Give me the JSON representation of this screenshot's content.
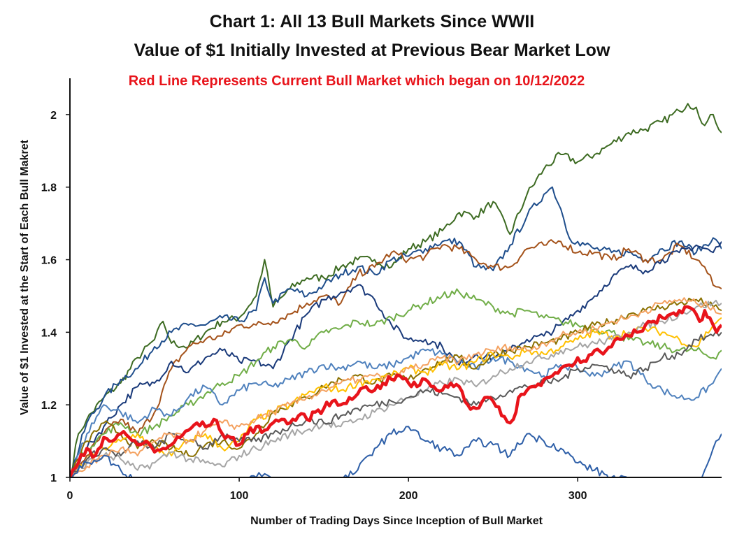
{
  "chart_data": {
    "type": "line",
    "title_line1": "Chart 1: All 13 Bull Markets Since WWII",
    "title_line2": "Value of $1 Initially Invested at Previous Bear Market Low",
    "subtitle": "Red Line Represents Current Bull Market which began on 10/12/2022",
    "subtitle_color": "#e8141b",
    "xlabel": "Number of Trading Days Since Inception of Bull Market",
    "ylabel": "Value of $1 Invested at the Start of Each Bull Makret",
    "xlim": [
      0,
      385
    ],
    "ylim": [
      1,
      2.1
    ],
    "xticks": [
      0,
      100,
      200,
      300
    ],
    "xtick_labels": [
      "0",
      "100",
      "200",
      "300"
    ],
    "yticks": [
      1,
      1.2,
      1.4,
      1.6,
      1.8,
      2
    ],
    "ytick_labels": [
      "1",
      "1.2",
      "1.4",
      "1.6",
      "1.8",
      "2"
    ],
    "grid": false,
    "legend": "none",
    "series": [
      {
        "color": "#3d6b22",
        "x": [
          0,
          5,
          10,
          20,
          30,
          40,
          50,
          55,
          60,
          70,
          80,
          90,
          100,
          110,
          115,
          120,
          130,
          140,
          150,
          160,
          170,
          180,
          190,
          200,
          210,
          220,
          230,
          240,
          250,
          260,
          270,
          280,
          290,
          300,
          310,
          320,
          330,
          340,
          350,
          360,
          365,
          370,
          375,
          380,
          385
        ],
        "values": [
          1,
          1.12,
          1.16,
          1.22,
          1.26,
          1.33,
          1.38,
          1.43,
          1.37,
          1.36,
          1.4,
          1.43,
          1.44,
          1.5,
          1.6,
          1.47,
          1.52,
          1.55,
          1.55,
          1.58,
          1.6,
          1.6,
          1.58,
          1.63,
          1.65,
          1.68,
          1.73,
          1.72,
          1.76,
          1.67,
          1.78,
          1.85,
          1.89,
          1.87,
          1.89,
          1.92,
          1.95,
          1.96,
          1.98,
          2.01,
          2.03,
          2.02,
          1.97,
          2.0,
          1.95
        ]
      },
      {
        "color": "#1f4e8c",
        "x": [
          0,
          10,
          20,
          30,
          40,
          50,
          60,
          70,
          80,
          90,
          100,
          110,
          115,
          120,
          130,
          140,
          150,
          160,
          170,
          180,
          190,
          200,
          210,
          220,
          230,
          240,
          250,
          260,
          270,
          280,
          285,
          290,
          295,
          300,
          310,
          320,
          330,
          340,
          350,
          360,
          370,
          380,
          385
        ],
        "values": [
          1,
          1.15,
          1.22,
          1.27,
          1.3,
          1.36,
          1.4,
          1.42,
          1.42,
          1.44,
          1.43,
          1.46,
          1.55,
          1.48,
          1.52,
          1.5,
          1.53,
          1.56,
          1.58,
          1.56,
          1.6,
          1.61,
          1.63,
          1.65,
          1.65,
          1.58,
          1.57,
          1.64,
          1.72,
          1.78,
          1.8,
          1.74,
          1.66,
          1.65,
          1.63,
          1.62,
          1.62,
          1.6,
          1.63,
          1.65,
          1.62,
          1.66,
          1.63
        ]
      },
      {
        "color": "#a4521a",
        "x": [
          0,
          10,
          20,
          30,
          40,
          50,
          60,
          70,
          80,
          90,
          100,
          110,
          120,
          130,
          140,
          150,
          160,
          170,
          180,
          190,
          200,
          210,
          220,
          230,
          240,
          250,
          260,
          270,
          280,
          290,
          300,
          310,
          320,
          330,
          340,
          350,
          360,
          370,
          375,
          380,
          385
        ],
        "values": [
          1,
          1.06,
          1.12,
          1.16,
          1.12,
          1.18,
          1.3,
          1.36,
          1.38,
          1.39,
          1.42,
          1.42,
          1.43,
          1.45,
          1.48,
          1.5,
          1.48,
          1.56,
          1.58,
          1.62,
          1.6,
          1.61,
          1.64,
          1.63,
          1.6,
          1.58,
          1.58,
          1.63,
          1.64,
          1.65,
          1.62,
          1.62,
          1.6,
          1.63,
          1.6,
          1.6,
          1.64,
          1.6,
          1.58,
          1.53,
          1.52
        ]
      },
      {
        "color": "#1a3a7a",
        "x": [
          0,
          10,
          20,
          30,
          40,
          50,
          60,
          70,
          80,
          90,
          100,
          110,
          120,
          130,
          140,
          150,
          160,
          170,
          180,
          190,
          200,
          210,
          220,
          230,
          240,
          250,
          260,
          270,
          280,
          290,
          300,
          310,
          320,
          330,
          340,
          350,
          360,
          370,
          380,
          385
        ],
        "values": [
          1,
          1.08,
          1.14,
          1.2,
          1.25,
          1.26,
          1.32,
          1.29,
          1.33,
          1.35,
          1.32,
          1.32,
          1.3,
          1.38,
          1.45,
          1.49,
          1.51,
          1.53,
          1.49,
          1.42,
          1.38,
          1.38,
          1.36,
          1.31,
          1.34,
          1.33,
          1.35,
          1.38,
          1.39,
          1.42,
          1.46,
          1.5,
          1.55,
          1.58,
          1.57,
          1.6,
          1.62,
          1.64,
          1.62,
          1.65
        ]
      },
      {
        "color": "#70ad47",
        "x": [
          0,
          10,
          20,
          30,
          40,
          50,
          60,
          70,
          80,
          90,
          100,
          110,
          120,
          130,
          140,
          150,
          160,
          170,
          180,
          190,
          200,
          210,
          220,
          230,
          240,
          250,
          260,
          270,
          280,
          290,
          300,
          310,
          320,
          330,
          340,
          350,
          360,
          370,
          380,
          385
        ],
        "values": [
          1,
          1.08,
          1.12,
          1.15,
          1.12,
          1.14,
          1.17,
          1.2,
          1.23,
          1.26,
          1.28,
          1.32,
          1.36,
          1.38,
          1.36,
          1.4,
          1.41,
          1.43,
          1.42,
          1.44,
          1.46,
          1.48,
          1.5,
          1.51,
          1.49,
          1.47,
          1.45,
          1.46,
          1.44,
          1.43,
          1.42,
          1.41,
          1.4,
          1.38,
          1.37,
          1.36,
          1.35,
          1.35,
          1.33,
          1.35
        ]
      },
      {
        "color": "#4f81bd",
        "x": [
          0,
          10,
          20,
          30,
          40,
          50,
          60,
          70,
          80,
          90,
          100,
          110,
          120,
          130,
          140,
          150,
          160,
          170,
          180,
          190,
          200,
          210,
          220,
          230,
          240,
          250,
          260,
          270,
          280,
          290,
          300,
          310,
          320,
          330,
          340,
          350,
          360,
          370,
          380,
          385
        ],
        "values": [
          1,
          1.12,
          1.2,
          1.18,
          1.15,
          1.19,
          1.17,
          1.22,
          1.25,
          1.2,
          1.24,
          1.26,
          1.25,
          1.27,
          1.29,
          1.31,
          1.3,
          1.32,
          1.3,
          1.31,
          1.33,
          1.35,
          1.34,
          1.32,
          1.3,
          1.33,
          1.32,
          1.3,
          1.28,
          1.31,
          1.3,
          1.28,
          1.3,
          1.32,
          1.27,
          1.24,
          1.22,
          1.22,
          1.26,
          1.3
        ]
      },
      {
        "color": "#8a7000",
        "x": [
          0,
          10,
          20,
          30,
          40,
          50,
          60,
          70,
          80,
          90,
          100,
          110,
          120,
          130,
          140,
          150,
          160,
          170,
          180,
          190,
          200,
          210,
          220,
          230,
          240,
          250,
          260,
          270,
          280,
          290,
          300,
          310,
          320,
          330,
          340,
          350,
          360,
          370,
          380,
          385
        ],
        "values": [
          1,
          1.1,
          1.15,
          1.12,
          1.08,
          1.1,
          1.08,
          1.06,
          1.09,
          1.1,
          1.08,
          1.12,
          1.18,
          1.2,
          1.22,
          1.25,
          1.27,
          1.28,
          1.26,
          1.28,
          1.27,
          1.3,
          1.32,
          1.33,
          1.3,
          1.34,
          1.35,
          1.36,
          1.37,
          1.38,
          1.4,
          1.42,
          1.43,
          1.45,
          1.46,
          1.47,
          1.48,
          1.49,
          1.47,
          1.46
        ]
      },
      {
        "color": "#ffc000",
        "x": [
          0,
          10,
          20,
          30,
          40,
          50,
          60,
          70,
          80,
          90,
          100,
          110,
          120,
          130,
          140,
          150,
          160,
          170,
          180,
          190,
          200,
          210,
          220,
          230,
          240,
          250,
          260,
          270,
          280,
          290,
          300,
          310,
          320,
          330,
          340,
          350,
          360,
          370,
          380,
          385
        ],
        "values": [
          1,
          1.05,
          1.08,
          1.1,
          1.12,
          1.08,
          1.06,
          1.1,
          1.12,
          1.08,
          1.1,
          1.16,
          1.18,
          1.2,
          1.23,
          1.25,
          1.24,
          1.26,
          1.27,
          1.28,
          1.3,
          1.29,
          1.31,
          1.3,
          1.32,
          1.34,
          1.33,
          1.35,
          1.34,
          1.36,
          1.38,
          1.4,
          1.39,
          1.4,
          1.41,
          1.4,
          1.38,
          1.36,
          1.42,
          1.44
        ]
      },
      {
        "color": "#a5a5a5",
        "x": [
          0,
          10,
          20,
          30,
          40,
          50,
          60,
          70,
          80,
          90,
          100,
          110,
          120,
          130,
          140,
          150,
          160,
          170,
          180,
          190,
          200,
          210,
          220,
          230,
          240,
          250,
          260,
          270,
          280,
          290,
          300,
          310,
          320,
          330,
          340,
          350,
          360,
          370,
          380,
          385
        ],
        "values": [
          1,
          1.04,
          1.06,
          1.05,
          1.02,
          1.04,
          1.07,
          1.05,
          1.04,
          1.03,
          1.06,
          1.08,
          1.1,
          1.12,
          1.13,
          1.15,
          1.14,
          1.16,
          1.18,
          1.2,
          1.22,
          1.24,
          1.26,
          1.27,
          1.25,
          1.28,
          1.3,
          1.32,
          1.33,
          1.35,
          1.36,
          1.37,
          1.38,
          1.4,
          1.42,
          1.43,
          1.45,
          1.47,
          1.48,
          1.48
        ]
      },
      {
        "color": "#595959",
        "x": [
          0,
          10,
          20,
          30,
          40,
          50,
          60,
          70,
          80,
          90,
          100,
          110,
          120,
          130,
          140,
          150,
          160,
          170,
          180,
          190,
          200,
          210,
          220,
          230,
          240,
          250,
          260,
          270,
          280,
          290,
          300,
          310,
          320,
          330,
          340,
          350,
          360,
          370,
          380,
          385
        ],
        "values": [
          1,
          1.05,
          1.08,
          1.06,
          1.1,
          1.08,
          1.12,
          1.1,
          1.08,
          1.12,
          1.1,
          1.1,
          1.12,
          1.14,
          1.16,
          1.15,
          1.17,
          1.19,
          1.2,
          1.21,
          1.22,
          1.24,
          1.23,
          1.22,
          1.2,
          1.22,
          1.24,
          1.25,
          1.26,
          1.27,
          1.3,
          1.31,
          1.3,
          1.28,
          1.3,
          1.33,
          1.34,
          1.38,
          1.39,
          1.4
        ]
      },
      {
        "color": "#f4a261",
        "x": [
          0,
          10,
          20,
          30,
          40,
          50,
          60,
          70,
          80,
          90,
          100,
          110,
          120,
          130,
          140,
          150,
          160,
          170,
          180,
          190,
          200,
          210,
          220,
          230,
          240,
          250,
          260,
          270,
          280,
          290,
          300,
          310,
          320,
          330,
          340,
          350,
          360,
          370,
          380,
          385
        ],
        "values": [
          1,
          1.03,
          1.06,
          1.08,
          1.06,
          1.1,
          1.12,
          1.1,
          1.13,
          1.15,
          1.14,
          1.16,
          1.18,
          1.2,
          1.22,
          1.24,
          1.26,
          1.27,
          1.28,
          1.27,
          1.3,
          1.31,
          1.33,
          1.32,
          1.34,
          1.35,
          1.36,
          1.35,
          1.37,
          1.39,
          1.4,
          1.41,
          1.43,
          1.44,
          1.46,
          1.48,
          1.49,
          1.48,
          1.47,
          1.45
        ]
      },
      {
        "color": "#2e5fa8",
        "x": [
          0,
          10,
          20,
          30,
          40,
          50,
          60,
          70,
          80,
          90,
          100,
          110,
          115,
          120,
          130,
          140,
          150,
          160,
          170,
          180,
          190,
          200,
          210,
          220,
          230,
          240,
          250,
          260,
          270,
          280,
          290,
          300,
          310,
          320,
          330,
          340,
          350,
          360,
          370,
          375,
          380,
          385
        ],
        "values": [
          1,
          1.04,
          1.06,
          1.02,
          0.99,
          0.96,
          0.94,
          0.95,
          0.97,
          0.98,
          0.99,
          1.0,
          1.01,
          0.99,
          0.97,
          0.96,
          0.98,
          0.99,
          1.02,
          1.08,
          1.12,
          1.14,
          1.1,
          1.08,
          1.06,
          1.1,
          1.09,
          1.06,
          1.12,
          1.1,
          1.08,
          1.04,
          1.02,
          1.0,
          0.99,
          0.98,
          0.96,
          0.95,
          0.98,
          1.02,
          1.08,
          1.12
        ]
      },
      {
        "color": "#e8141b",
        "width": 4.5,
        "x": [
          0,
          5,
          10,
          15,
          20,
          25,
          30,
          35,
          40,
          45,
          50,
          55,
          60,
          65,
          70,
          75,
          80,
          85,
          90,
          95,
          100,
          105,
          110,
          115,
          120,
          125,
          130,
          135,
          140,
          145,
          150,
          155,
          160,
          165,
          170,
          175,
          180,
          185,
          190,
          195,
          200,
          205,
          210,
          215,
          220,
          225,
          230,
          235,
          240,
          245,
          250,
          255,
          260,
          262,
          265,
          270,
          275,
          280,
          285,
          290,
          295,
          300,
          305,
          310,
          315,
          320,
          325,
          330,
          335,
          340,
          345,
          350,
          355,
          360,
          365,
          370,
          372,
          375,
          378,
          380,
          382,
          385
        ],
        "values": [
          1,
          1.04,
          1.08,
          1.06,
          1.11,
          1.1,
          1.12,
          1.11,
          1.09,
          1.1,
          1.07,
          1.08,
          1.09,
          1.11,
          1.13,
          1.15,
          1.14,
          1.16,
          1.12,
          1.11,
          1.09,
          1.12,
          1.14,
          1.13,
          1.15,
          1.16,
          1.15,
          1.17,
          1.16,
          1.18,
          1.19,
          1.21,
          1.2,
          1.22,
          1.23,
          1.25,
          1.24,
          1.26,
          1.27,
          1.28,
          1.26,
          1.25,
          1.27,
          1.25,
          1.24,
          1.26,
          1.25,
          1.2,
          1.19,
          1.22,
          1.21,
          1.17,
          1.15,
          1.16,
          1.22,
          1.24,
          1.25,
          1.27,
          1.28,
          1.3,
          1.31,
          1.33,
          1.32,
          1.35,
          1.34,
          1.36,
          1.38,
          1.39,
          1.4,
          1.42,
          1.43,
          1.44,
          1.45,
          1.46,
          1.47,
          1.45,
          1.43,
          1.46,
          1.44,
          1.42,
          1.4,
          1.42
        ]
      }
    ]
  }
}
